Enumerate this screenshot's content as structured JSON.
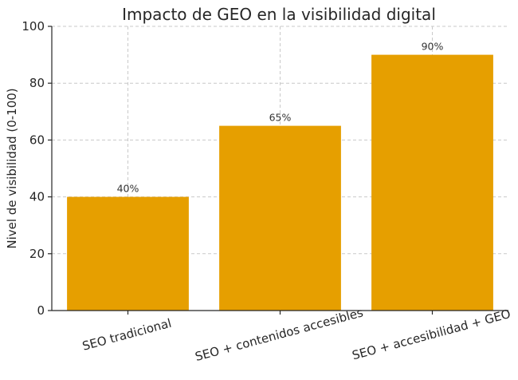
{
  "chart_data": {
    "type": "bar",
    "title": "Impacto de GEO en la visibilidad digital",
    "xlabel": "",
    "ylabel": "Nivel de visibilidad (0-100)",
    "categories": [
      "SEO tradicional",
      "SEO + contenidos accesibles",
      "SEO + accesibilidad + GEO"
    ],
    "values": [
      40,
      65,
      90
    ],
    "data_labels": [
      "40%",
      "65%",
      "90%"
    ],
    "ylim": [
      0,
      100
    ],
    "yticks": [
      0,
      20,
      40,
      60,
      80,
      100
    ],
    "grid": true,
    "bar_color": "#E69F00",
    "x_tick_rotation_deg": 15
  }
}
